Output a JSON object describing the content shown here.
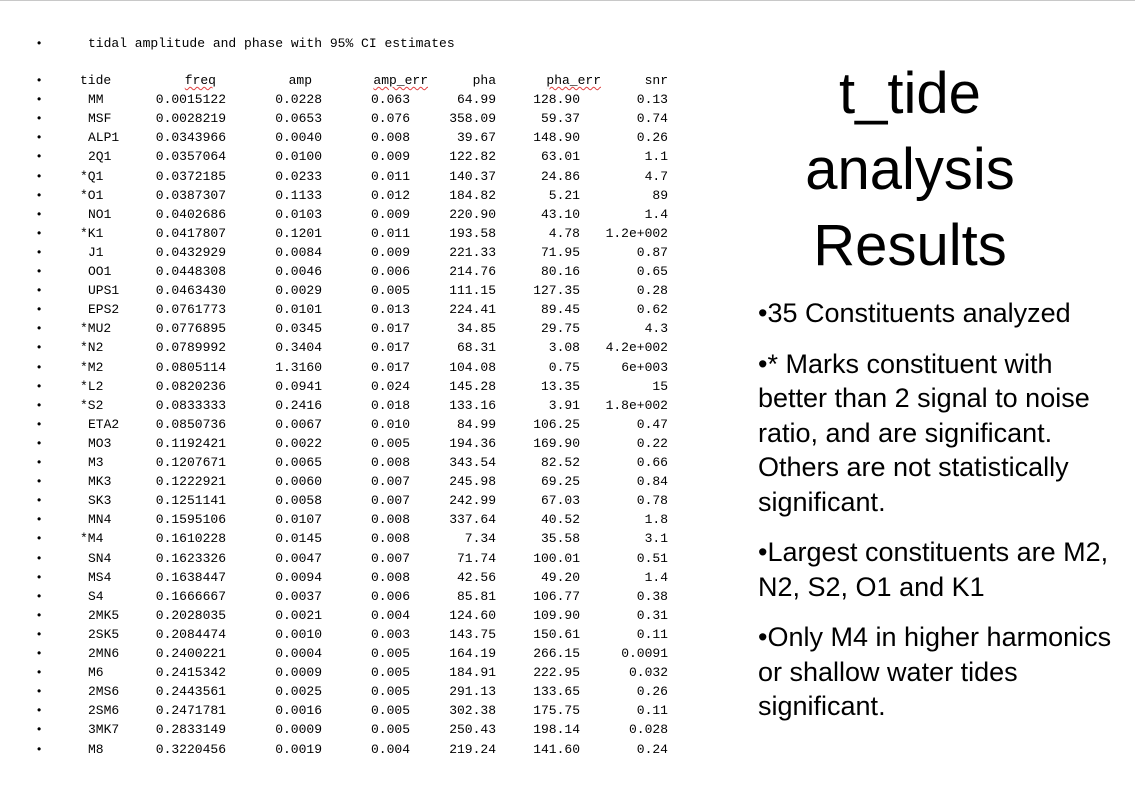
{
  "heading": "tidal amplitude and phase with 95% CI estimates",
  "bullet_char": "•",
  "table": {
    "columns": [
      "tide",
      "freq",
      "amp",
      "amp_err",
      "pha",
      "pha_err",
      "snr"
    ],
    "rows": [
      [
        "MM",
        "0.0015122",
        "0.0228",
        "0.063",
        "64.99",
        "128.90",
        "0.13"
      ],
      [
        "MSF",
        "0.0028219",
        "0.0653",
        "0.076",
        "358.09",
        "59.37",
        "0.74"
      ],
      [
        "ALP1",
        "0.0343966",
        "0.0040",
        "0.008",
        "39.67",
        "148.90",
        "0.26"
      ],
      [
        "2Q1",
        "0.0357064",
        "0.0100",
        "0.009",
        "122.82",
        "63.01",
        "1.1"
      ],
      [
        "*Q1",
        "0.0372185",
        "0.0233",
        "0.011",
        "140.37",
        "24.86",
        "4.7"
      ],
      [
        "*O1",
        "0.0387307",
        "0.1133",
        "0.012",
        "184.82",
        "5.21",
        "89"
      ],
      [
        "NO1",
        "0.0402686",
        "0.0103",
        "0.009",
        "220.90",
        "43.10",
        "1.4"
      ],
      [
        "*K1",
        "0.0417807",
        "0.1201",
        "0.011",
        "193.58",
        "4.78",
        "1.2e+002"
      ],
      [
        "J1",
        "0.0432929",
        "0.0084",
        "0.009",
        "221.33",
        "71.95",
        "0.87"
      ],
      [
        "OO1",
        "0.0448308",
        "0.0046",
        "0.006",
        "214.76",
        "80.16",
        "0.65"
      ],
      [
        "UPS1",
        "0.0463430",
        "0.0029",
        "0.005",
        "111.15",
        "127.35",
        "0.28"
      ],
      [
        "EPS2",
        "0.0761773",
        "0.0101",
        "0.013",
        "224.41",
        "89.45",
        "0.62"
      ],
      [
        "*MU2",
        "0.0776895",
        "0.0345",
        "0.017",
        "34.85",
        "29.75",
        "4.3"
      ],
      [
        "*N2",
        "0.0789992",
        "0.3404",
        "0.017",
        "68.31",
        "3.08",
        "4.2e+002"
      ],
      [
        "*M2",
        "0.0805114",
        "1.3160",
        "0.017",
        "104.08",
        "0.75",
        "6e+003"
      ],
      [
        "*L2",
        "0.0820236",
        "0.0941",
        "0.024",
        "145.28",
        "13.35",
        "15"
      ],
      [
        "*S2",
        "0.0833333",
        "0.2416",
        "0.018",
        "133.16",
        "3.91",
        "1.8e+002"
      ],
      [
        "ETA2",
        "0.0850736",
        "0.0067",
        "0.010",
        "84.99",
        "106.25",
        "0.47"
      ],
      [
        "MO3",
        "0.1192421",
        "0.0022",
        "0.005",
        "194.36",
        "169.90",
        "0.22"
      ],
      [
        "M3",
        "0.1207671",
        "0.0065",
        "0.008",
        "343.54",
        "82.52",
        "0.66"
      ],
      [
        "MK3",
        "0.1222921",
        "0.0060",
        "0.007",
        "245.98",
        "69.25",
        "0.84"
      ],
      [
        "SK3",
        "0.1251141",
        "0.0058",
        "0.007",
        "242.99",
        "67.03",
        "0.78"
      ],
      [
        "MN4",
        "0.1595106",
        "0.0107",
        "0.008",
        "337.64",
        "40.52",
        "1.8"
      ],
      [
        "*M4",
        "0.1610228",
        "0.0145",
        "0.008",
        "7.34",
        "35.58",
        "3.1"
      ],
      [
        "SN4",
        "0.1623326",
        "0.0047",
        "0.007",
        "71.74",
        "100.01",
        "0.51"
      ],
      [
        "MS4",
        "0.1638447",
        "0.0094",
        "0.008",
        "42.56",
        "49.20",
        "1.4"
      ],
      [
        "S4",
        "0.1666667",
        "0.0037",
        "0.006",
        "85.81",
        "106.77",
        "0.38"
      ],
      [
        "2MK5",
        "0.2028035",
        "0.0021",
        "0.004",
        "124.60",
        "109.90",
        "0.31"
      ],
      [
        "2SK5",
        "0.2084474",
        "0.0010",
        "0.003",
        "143.75",
        "150.61",
        "0.11"
      ],
      [
        "2MN6",
        "0.2400221",
        "0.0004",
        "0.005",
        "164.19",
        "266.15",
        "0.0091"
      ],
      [
        "M6",
        "0.2415342",
        "0.0009",
        "0.005",
        "184.91",
        "222.95",
        "0.032"
      ],
      [
        "2MS6",
        "0.2443561",
        "0.0025",
        "0.005",
        "291.13",
        "133.65",
        "0.26"
      ],
      [
        "2SM6",
        "0.2471781",
        "0.0016",
        "0.005",
        "302.38",
        "175.75",
        "0.11"
      ],
      [
        "3MK7",
        "0.2833149",
        "0.0009",
        "0.005",
        "250.43",
        "198.14",
        "0.028"
      ],
      [
        "M8",
        "0.3220456",
        "0.0019",
        "0.004",
        "219.24",
        "141.60",
        "0.24"
      ]
    ]
  },
  "title_lines": [
    "t_tide",
    "analysis",
    "Results"
  ],
  "bullets": [
    "•35 Constituents analyzed",
    "•* Marks constituent with better than 2 signal to noise ratio, and are significant.  Others are not statistically significant.",
    "•Largest constituents are M2, N2, S2, O1 and K1",
    "•Only M4 in higher harmonics or shallow water tides significant."
  ]
}
